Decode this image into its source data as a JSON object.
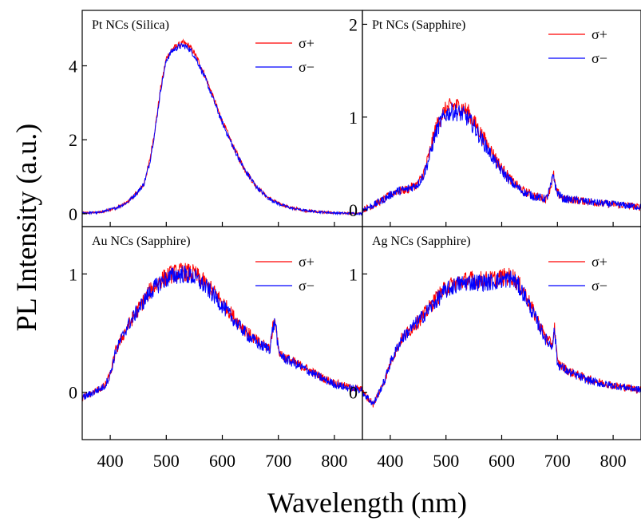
{
  "figure": {
    "ylabel": "PL Intensity (a.u.)",
    "xlabel": "Wavelength (nm)"
  },
  "colors": {
    "sigma_plus": "#ff0000",
    "sigma_minus": "#0000ff"
  },
  "chart_data": [
    {
      "type": "line",
      "title": "Pt NCs (Silica)",
      "xlim": [
        350,
        850
      ],
      "ylim": [
        -0.35,
        5.5
      ],
      "xticks": [
        400,
        500,
        600,
        700,
        800
      ],
      "yticks": [
        0,
        2,
        4
      ],
      "ytick_labels": [
        "0",
        "2",
        "4"
      ],
      "series": [
        {
          "name": "σ+",
          "color": "#ff0000",
          "noise": 0.05,
          "x": [
            350,
            380,
            410,
            430,
            450,
            460,
            470,
            480,
            490,
            500,
            510,
            520,
            530,
            540,
            550,
            560,
            570,
            580,
            590,
            600,
            620,
            640,
            660,
            680,
            700,
            720,
            750,
            780,
            800,
            820,
            850
          ],
          "y": [
            0.02,
            0.03,
            0.15,
            0.3,
            0.6,
            0.8,
            1.4,
            2.3,
            3.4,
            4.2,
            4.45,
            4.55,
            4.62,
            4.55,
            4.35,
            4.05,
            3.7,
            3.3,
            2.9,
            2.5,
            1.8,
            1.2,
            0.75,
            0.45,
            0.28,
            0.17,
            0.08,
            0.04,
            0.02,
            0.01,
            0.0
          ]
        },
        {
          "name": "σ−",
          "color": "#0000ff",
          "noise": 0.05,
          "x": [
            350,
            380,
            410,
            430,
            450,
            460,
            470,
            480,
            490,
            500,
            510,
            520,
            530,
            540,
            550,
            560,
            570,
            580,
            590,
            600,
            620,
            640,
            660,
            680,
            700,
            720,
            750,
            780,
            800,
            820,
            850
          ],
          "y": [
            0.02,
            0.03,
            0.15,
            0.3,
            0.6,
            0.8,
            1.35,
            2.25,
            3.35,
            4.15,
            4.4,
            4.5,
            4.55,
            4.48,
            4.28,
            3.98,
            3.64,
            3.25,
            2.85,
            2.46,
            1.78,
            1.18,
            0.74,
            0.44,
            0.27,
            0.16,
            0.08,
            0.04,
            0.02,
            0.01,
            0.0
          ]
        }
      ]
    },
    {
      "type": "line",
      "title": "Pt NCs (Sapphire)",
      "xlim": [
        350,
        850
      ],
      "ylim": [
        -0.18,
        2.15
      ],
      "xticks": [
        400,
        500,
        600,
        700,
        800
      ],
      "yticks": [
        0,
        1,
        2
      ],
      "ytick_labels": [
        "0",
        "1",
        "2"
      ],
      "series": [
        {
          "name": "σ+",
          "color": "#ff0000",
          "noise": 0.06,
          "x": [
            350,
            370,
            390,
            410,
            430,
            450,
            460,
            470,
            480,
            490,
            500,
            510,
            520,
            530,
            540,
            550,
            560,
            570,
            580,
            590,
            600,
            620,
            640,
            660,
            680,
            688,
            693,
            698,
            710,
            740,
            780,
            820,
            850
          ],
          "y": [
            0.0,
            0.05,
            0.12,
            0.2,
            0.22,
            0.28,
            0.4,
            0.6,
            0.85,
            1.0,
            1.08,
            1.12,
            1.12,
            1.1,
            1.05,
            0.95,
            0.85,
            0.75,
            0.65,
            0.55,
            0.45,
            0.3,
            0.2,
            0.15,
            0.12,
            0.25,
            0.38,
            0.2,
            0.12,
            0.1,
            0.07,
            0.05,
            0.03
          ]
        },
        {
          "name": "σ−",
          "color": "#0000ff",
          "noise": 0.06,
          "x": [
            350,
            370,
            390,
            410,
            430,
            450,
            460,
            470,
            480,
            490,
            500,
            510,
            520,
            530,
            540,
            550,
            560,
            570,
            580,
            590,
            600,
            620,
            640,
            660,
            680,
            688,
            693,
            698,
            710,
            740,
            780,
            820,
            850
          ],
          "y": [
            0.0,
            0.05,
            0.12,
            0.2,
            0.22,
            0.28,
            0.38,
            0.56,
            0.8,
            0.95,
            1.03,
            1.06,
            1.05,
            1.03,
            0.98,
            0.9,
            0.8,
            0.7,
            0.6,
            0.5,
            0.42,
            0.28,
            0.19,
            0.14,
            0.12,
            0.25,
            0.38,
            0.2,
            0.12,
            0.1,
            0.07,
            0.05,
            0.03
          ]
        }
      ]
    },
    {
      "type": "line",
      "title": "Au NCs (Sapphire)",
      "xlim": [
        350,
        850
      ],
      "ylim": [
        -0.4,
        1.4
      ],
      "xticks": [
        400,
        500,
        600,
        700,
        800
      ],
      "yticks": [
        0,
        1
      ],
      "ytick_labels": [
        "0",
        "1"
      ],
      "series": [
        {
          "name": "σ+",
          "color": "#ff0000",
          "noise": 0.05,
          "x": [
            350,
            370,
            390,
            400,
            410,
            420,
            430,
            450,
            470,
            490,
            510,
            530,
            550,
            570,
            590,
            610,
            630,
            650,
            670,
            685,
            690,
            695,
            700,
            710,
            730,
            750,
            780,
            800,
            820,
            850
          ],
          "y": [
            -0.05,
            0.0,
            0.05,
            0.15,
            0.35,
            0.45,
            0.55,
            0.7,
            0.85,
            0.95,
            1.0,
            1.02,
            1.0,
            0.92,
            0.82,
            0.7,
            0.58,
            0.48,
            0.4,
            0.38,
            0.55,
            0.62,
            0.35,
            0.3,
            0.25,
            0.2,
            0.12,
            0.08,
            0.05,
            0.02
          ]
        },
        {
          "name": "σ−",
          "color": "#0000ff",
          "noise": 0.05,
          "x": [
            350,
            370,
            390,
            400,
            410,
            420,
            430,
            450,
            470,
            490,
            510,
            530,
            550,
            570,
            590,
            610,
            630,
            650,
            670,
            685,
            690,
            695,
            700,
            710,
            730,
            750,
            780,
            800,
            820,
            850
          ],
          "y": [
            -0.05,
            0.0,
            0.05,
            0.15,
            0.35,
            0.45,
            0.55,
            0.7,
            0.84,
            0.93,
            0.98,
            1.0,
            0.97,
            0.89,
            0.79,
            0.67,
            0.56,
            0.46,
            0.39,
            0.37,
            0.54,
            0.6,
            0.34,
            0.29,
            0.24,
            0.19,
            0.11,
            0.07,
            0.04,
            0.02
          ]
        }
      ]
    },
    {
      "type": "line",
      "title": "Ag NCs (Sapphire)",
      "xlim": [
        350,
        850
      ],
      "ylim": [
        -0.4,
        1.4
      ],
      "xticks": [
        400,
        500,
        600,
        700,
        800
      ],
      "yticks": [
        0,
        1
      ],
      "ytick_labels": [
        "0",
        "1"
      ],
      "series": [
        {
          "name": "σ+",
          "color": "#ff0000",
          "noise": 0.05,
          "x": [
            350,
            360,
            370,
            380,
            390,
            400,
            410,
            420,
            440,
            460,
            480,
            500,
            520,
            540,
            560,
            580,
            600,
            620,
            640,
            660,
            680,
            690,
            695,
            700,
            720,
            750,
            780,
            810,
            850
          ],
          "y": [
            0.0,
            -0.05,
            -0.1,
            0.0,
            0.1,
            0.25,
            0.35,
            0.45,
            0.55,
            0.65,
            0.78,
            0.88,
            0.93,
            0.95,
            0.95,
            0.95,
            0.97,
            0.98,
            0.85,
            0.65,
            0.45,
            0.4,
            0.55,
            0.25,
            0.18,
            0.12,
            0.08,
            0.05,
            0.02
          ]
        },
        {
          "name": "σ−",
          "color": "#0000ff",
          "noise": 0.05,
          "x": [
            350,
            360,
            370,
            380,
            390,
            400,
            410,
            420,
            440,
            460,
            480,
            500,
            520,
            540,
            560,
            580,
            600,
            620,
            640,
            660,
            680,
            690,
            695,
            700,
            720,
            750,
            780,
            810,
            850
          ],
          "y": [
            0.0,
            -0.05,
            -0.1,
            0.0,
            0.1,
            0.25,
            0.35,
            0.45,
            0.55,
            0.65,
            0.76,
            0.86,
            0.91,
            0.93,
            0.93,
            0.93,
            0.95,
            0.96,
            0.83,
            0.63,
            0.44,
            0.39,
            0.53,
            0.24,
            0.17,
            0.11,
            0.07,
            0.05,
            0.02
          ]
        }
      ]
    }
  ]
}
